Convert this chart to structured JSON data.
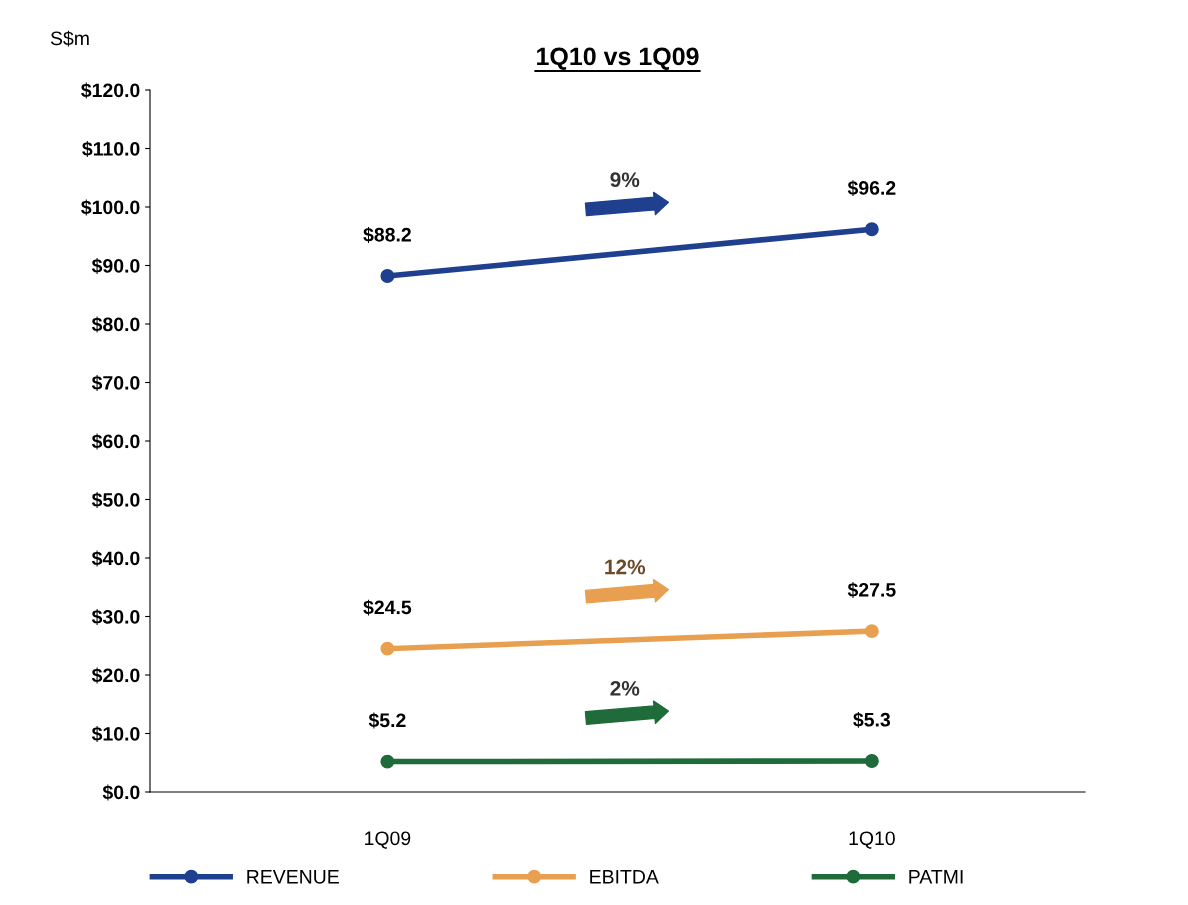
{
  "chart_data": {
    "type": "line",
    "title": "1Q10 vs 1Q09",
    "ylabel": "S$m",
    "categories": [
      "1Q09",
      "1Q10"
    ],
    "series": [
      {
        "name": "REVENUE",
        "color": "#1f3f8f",
        "values": [
          88.2,
          96.2
        ],
        "value_labels": [
          "$88.2",
          "$96.2"
        ]
      },
      {
        "name": "EBITDA",
        "color": "#e8a050",
        "values": [
          24.5,
          27.5
        ],
        "value_labels": [
          "$24.5",
          "$27.5"
        ]
      },
      {
        "name": "PATMI",
        "color": "#1f6b3a",
        "values": [
          5.2,
          5.3
        ],
        "value_labels": [
          "$5.2",
          "$5.3"
        ]
      }
    ],
    "annotations": [
      "9%",
      "12%",
      "2%"
    ],
    "ylim": [
      0,
      120
    ],
    "yticks": [
      {
        "value": 0,
        "label": "$0.0"
      },
      {
        "value": 10,
        "label": "$10.0"
      },
      {
        "value": 20,
        "label": "$20.0"
      },
      {
        "value": 30,
        "label": "$30.0"
      },
      {
        "value": 40,
        "label": "$40.0"
      },
      {
        "value": 50,
        "label": "$50.0"
      },
      {
        "value": 60,
        "label": "$60.0"
      },
      {
        "value": 70,
        "label": "$70.0"
      },
      {
        "value": 80,
        "label": "$80.0"
      },
      {
        "value": 90,
        "label": "$90.0"
      },
      {
        "value": 100,
        "label": "$100.0"
      },
      {
        "value": 110,
        "label": "$110.0"
      },
      {
        "value": 120,
        "label": "$120.0"
      }
    ],
    "grid": false,
    "legend": "bottom",
    "marker": "circle",
    "line_style": "solid"
  }
}
